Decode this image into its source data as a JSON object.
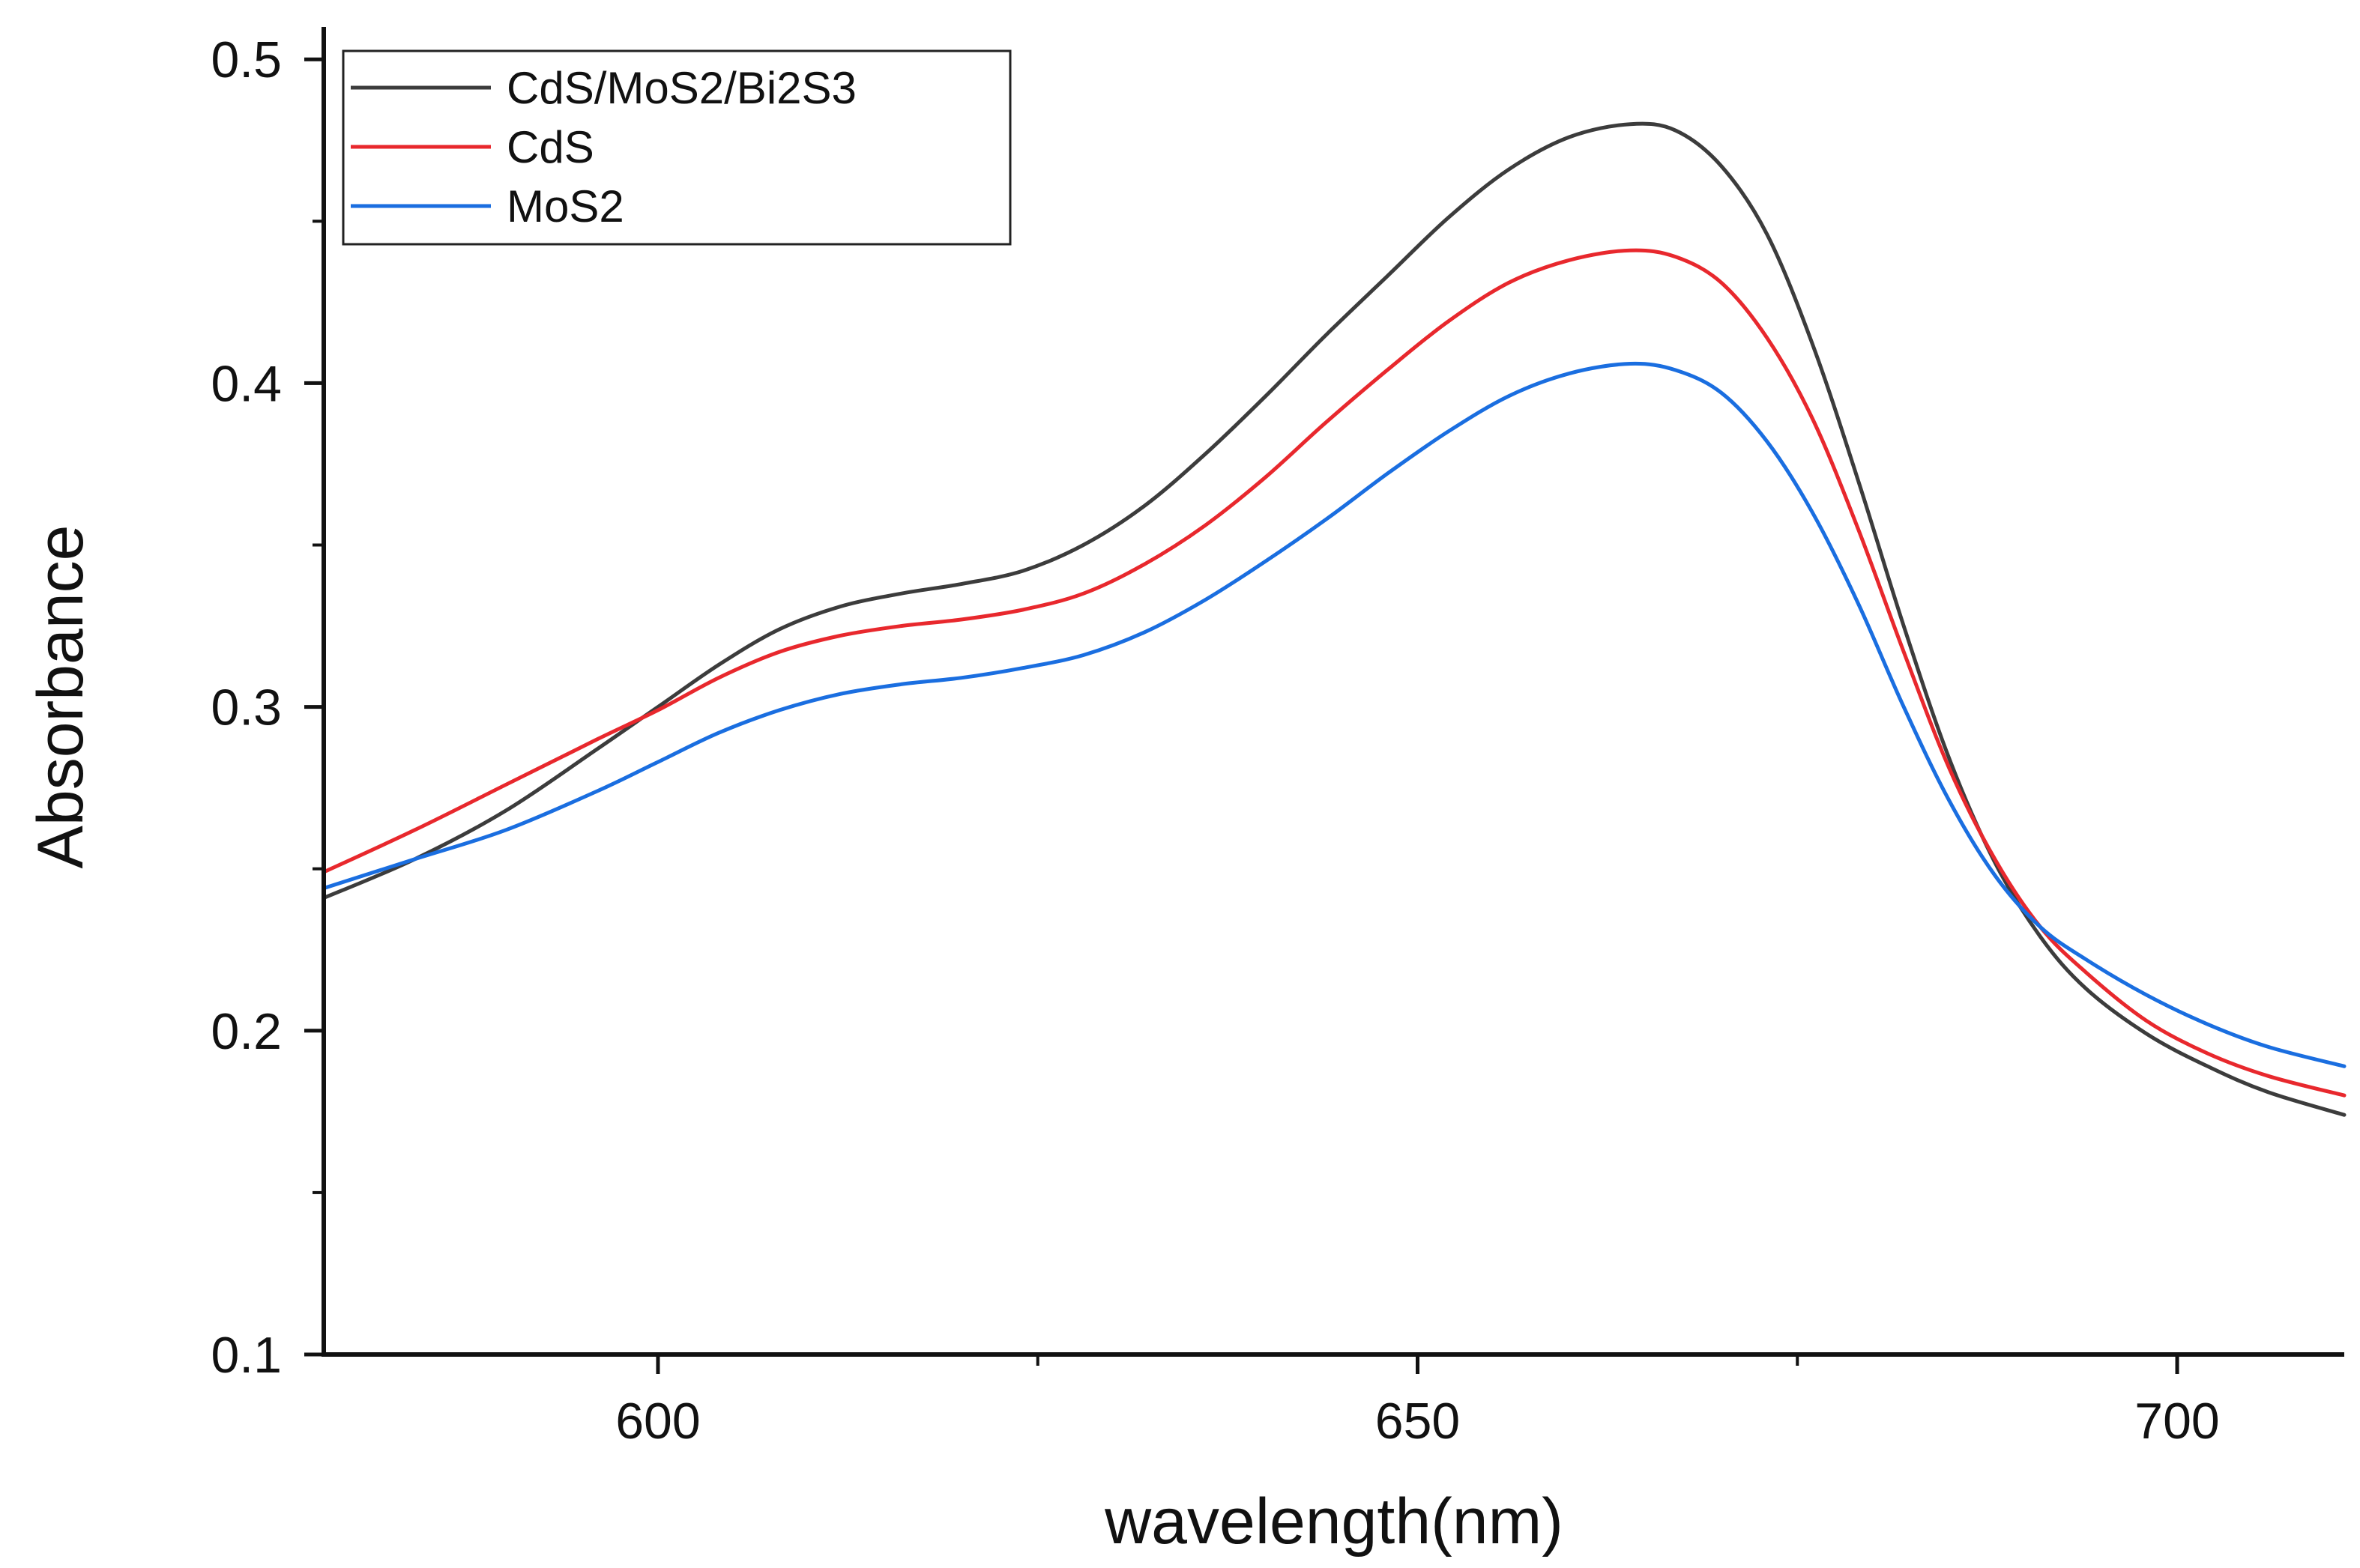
{
  "chart_data": {
    "type": "line",
    "title": "",
    "xlabel": "wavelength(nm)",
    "ylabel": "Absorbance",
    "xlim": [
      578,
      711
    ],
    "ylim": [
      0.1,
      0.51
    ],
    "x_ticks": [
      600,
      650,
      700
    ],
    "x_tick_labels": [
      "600",
      "650",
      "700"
    ],
    "x_minor_ticks": [
      625,
      675
    ],
    "y_ticks": [
      0.1,
      0.2,
      0.3,
      0.4,
      0.5
    ],
    "y_tick_labels": [
      "0.1",
      "0.2",
      "0.3",
      "0.4",
      "0.5"
    ],
    "y_minor_ticks": [
      0.15,
      0.25,
      0.35,
      0.45
    ],
    "grid": false,
    "legend_position": "top-left",
    "x": [
      578,
      584,
      590,
      596,
      600,
      604,
      608,
      612,
      616,
      620,
      624,
      628,
      632,
      636,
      640,
      644,
      648,
      652,
      656,
      660,
      664,
      667,
      670,
      673,
      676,
      679,
      682,
      685,
      688,
      691,
      694,
      698,
      702,
      706,
      711
    ],
    "series": [
      {
        "name": "CdS/MoS2/Bi2S3",
        "color": "#3c3c3c",
        "values": [
          0.241,
          0.253,
          0.268,
          0.287,
          0.3,
          0.313,
          0.324,
          0.331,
          0.335,
          0.338,
          0.342,
          0.35,
          0.362,
          0.378,
          0.396,
          0.415,
          0.433,
          0.451,
          0.466,
          0.476,
          0.48,
          0.478,
          0.467,
          0.446,
          0.412,
          0.37,
          0.325,
          0.284,
          0.252,
          0.229,
          0.213,
          0.199,
          0.189,
          0.181,
          0.174
        ]
      },
      {
        "name": "CdS",
        "color": "#e8282d",
        "values": [
          0.249,
          0.262,
          0.276,
          0.29,
          0.299,
          0.309,
          0.317,
          0.322,
          0.325,
          0.327,
          0.33,
          0.335,
          0.344,
          0.356,
          0.371,
          0.388,
          0.404,
          0.419,
          0.431,
          0.438,
          0.441,
          0.439,
          0.431,
          0.414,
          0.389,
          0.355,
          0.317,
          0.281,
          0.253,
          0.232,
          0.218,
          0.203,
          0.193,
          0.186,
          0.18
        ]
      },
      {
        "name": "MoS2",
        "color": "#1a6ee0",
        "values": [
          0.244,
          0.253,
          0.262,
          0.274,
          0.283,
          0.292,
          0.299,
          0.304,
          0.307,
          0.309,
          0.312,
          0.316,
          0.323,
          0.333,
          0.345,
          0.358,
          0.372,
          0.385,
          0.396,
          0.403,
          0.406,
          0.404,
          0.397,
          0.382,
          0.36,
          0.332,
          0.3,
          0.271,
          0.248,
          0.232,
          0.222,
          0.211,
          0.202,
          0.195,
          0.189
        ]
      }
    ]
  }
}
